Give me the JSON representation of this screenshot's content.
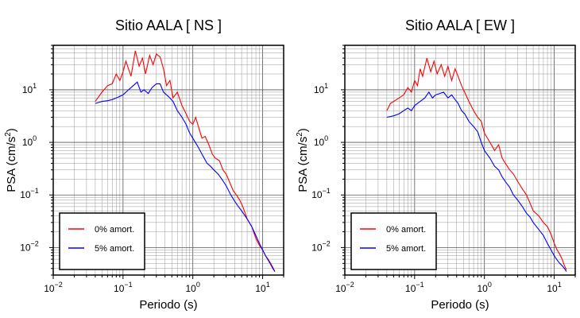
{
  "chart_data": [
    {
      "type": "line",
      "title": "Sitio AALA [ NS ]",
      "xlabel": "Periodo (s)",
      "ylabel": "PSA (cm/s²)",
      "xscale": "log",
      "yscale": "log",
      "xlim": [
        0.01,
        20
      ],
      "ylim": [
        0.003,
        70
      ],
      "grid": true,
      "legend_position": "bottom-left",
      "x_ticks": [
        {
          "base": "10",
          "exp": "−2"
        },
        {
          "base": "10",
          "exp": "−1"
        },
        {
          "base": "10",
          "exp": "0"
        },
        {
          "base": "10",
          "exp": "1"
        }
      ],
      "y_ticks": [
        {
          "base": "10",
          "exp": "−2"
        },
        {
          "base": "10",
          "exp": "−1"
        },
        {
          "base": "10",
          "exp": "0"
        },
        {
          "base": "10",
          "exp": "1"
        }
      ],
      "series": [
        {
          "name": "0% amort.",
          "color": "#ff0000",
          "x": [
            0.04,
            0.05,
            0.06,
            0.07,
            0.08,
            0.09,
            0.1,
            0.11,
            0.13,
            0.15,
            0.17,
            0.19,
            0.21,
            0.24,
            0.27,
            0.3,
            0.34,
            0.38,
            0.42,
            0.47,
            0.52,
            0.6,
            0.7,
            0.8,
            0.9,
            1.0,
            1.1,
            1.2,
            1.35,
            1.5,
            1.7,
            1.9,
            2.1,
            2.4,
            2.7,
            3.0,
            3.4,
            3.8,
            4.2,
            4.7,
            5.2,
            6.0,
            7.0,
            8.0,
            9.0,
            10.0,
            11.0,
            12.0,
            13.0,
            14.0,
            15.0
          ],
          "y": [
            6,
            9,
            12,
            13,
            20,
            15,
            22,
            35,
            18,
            55,
            28,
            40,
            20,
            45,
            30,
            48,
            42,
            25,
            12,
            15,
            7,
            9,
            5,
            3.5,
            2.5,
            2.2,
            3,
            2,
            1.2,
            1.3,
            0.9,
            0.6,
            0.5,
            0.45,
            0.3,
            0.25,
            0.17,
            0.12,
            0.1,
            0.08,
            0.06,
            0.035,
            0.025,
            0.015,
            0.011,
            0.009,
            0.007,
            0.006,
            0.005,
            0.0042,
            0.0035
          ]
        },
        {
          "name": "5% amort.",
          "color": "#0000ff",
          "x": [
            0.04,
            0.05,
            0.06,
            0.07,
            0.08,
            0.09,
            0.1,
            0.12,
            0.14,
            0.16,
            0.18,
            0.2,
            0.23,
            0.26,
            0.3,
            0.34,
            0.38,
            0.42,
            0.47,
            0.52,
            0.6,
            0.7,
            0.8,
            0.9,
            1.0,
            1.2,
            1.4,
            1.6,
            1.8,
            2.0,
            2.3,
            2.6,
            3.0,
            3.5,
            4.0,
            4.5,
            5.0,
            6.0,
            7.0,
            8.0,
            9.0,
            10.0,
            11.0,
            12.0,
            13.0,
            14.0,
            15.0
          ],
          "y": [
            5.5,
            6,
            6.2,
            6.5,
            7,
            7.5,
            8,
            10,
            12,
            14,
            9,
            10,
            8.5,
            11,
            13,
            13,
            9,
            8,
            7,
            6,
            4,
            3,
            2.2,
            1.5,
            1.2,
            0.8,
            0.55,
            0.4,
            0.35,
            0.3,
            0.25,
            0.2,
            0.15,
            0.1,
            0.075,
            0.06,
            0.05,
            0.035,
            0.025,
            0.017,
            0.012,
            0.009,
            0.007,
            0.0058,
            0.0048,
            0.004,
            0.0035
          ]
        }
      ]
    },
    {
      "type": "line",
      "title": "Sitio AALA [ EW ]",
      "xlabel": "Periodo (s)",
      "ylabel": "PSA (cm/s²)",
      "xscale": "log",
      "yscale": "log",
      "xlim": [
        0.01,
        20
      ],
      "ylim": [
        0.003,
        70
      ],
      "grid": true,
      "legend_position": "bottom-left",
      "x_ticks": [
        {
          "base": "10",
          "exp": "−2"
        },
        {
          "base": "10",
          "exp": "−1"
        },
        {
          "base": "10",
          "exp": "0"
        },
        {
          "base": "10",
          "exp": "1"
        }
      ],
      "y_ticks": [
        {
          "base": "10",
          "exp": "−2"
        },
        {
          "base": "10",
          "exp": "−1"
        },
        {
          "base": "10",
          "exp": "0"
        },
        {
          "base": "10",
          "exp": "1"
        }
      ],
      "series": [
        {
          "name": "0% amort.",
          "color": "#ff0000",
          "x": [
            0.04,
            0.045,
            0.05,
            0.06,
            0.07,
            0.08,
            0.09,
            0.1,
            0.11,
            0.12,
            0.13,
            0.15,
            0.17,
            0.19,
            0.21,
            0.24,
            0.27,
            0.3,
            0.34,
            0.38,
            0.42,
            0.47,
            0.52,
            0.6,
            0.7,
            0.8,
            0.9,
            1.0,
            1.2,
            1.4,
            1.6,
            1.8,
            2.0,
            2.3,
            2.6,
            3.0,
            3.5,
            4.0,
            4.5,
            5.0,
            6.0,
            7.0,
            8.0,
            9.0,
            10.0,
            11.0,
            12.0,
            13.0,
            14.0,
            15.0
          ],
          "y": [
            4,
            5.5,
            6,
            7,
            8,
            11,
            9,
            15,
            12,
            25,
            18,
            40,
            22,
            35,
            20,
            30,
            18,
            28,
            15,
            25,
            18,
            12,
            9,
            6,
            4,
            3,
            2.5,
            1.5,
            1.0,
            0.7,
            0.9,
            0.5,
            0.4,
            0.3,
            0.25,
            0.18,
            0.13,
            0.1,
            0.07,
            0.05,
            0.04,
            0.03,
            0.025,
            0.018,
            0.012,
            0.009,
            0.0075,
            0.006,
            0.0045,
            0.0038
          ]
        },
        {
          "name": "5% amort.",
          "color": "#0000ff",
          "x": [
            0.04,
            0.05,
            0.06,
            0.07,
            0.08,
            0.09,
            0.1,
            0.12,
            0.14,
            0.16,
            0.18,
            0.2,
            0.23,
            0.26,
            0.3,
            0.34,
            0.38,
            0.42,
            0.47,
            0.52,
            0.6,
            0.7,
            0.8,
            0.9,
            1.0,
            1.2,
            1.4,
            1.6,
            1.8,
            2.0,
            2.3,
            2.6,
            3.0,
            3.5,
            4.0,
            4.5,
            5.0,
            6.0,
            7.0,
            8.0,
            9.0,
            10.0,
            11.0,
            12.0,
            13.0,
            14.0,
            15.0
          ],
          "y": [
            3,
            3.2,
            3.5,
            4,
            4.5,
            4,
            5,
            6,
            7,
            9,
            7,
            8,
            8.5,
            9,
            7,
            8,
            6.5,
            5.5,
            4,
            3.5,
            2.5,
            2.0,
            1.6,
            1.0,
            0.7,
            0.5,
            0.35,
            0.3,
            0.22,
            0.18,
            0.14,
            0.1,
            0.08,
            0.06,
            0.045,
            0.038,
            0.03,
            0.022,
            0.017,
            0.012,
            0.009,
            0.007,
            0.0058,
            0.005,
            0.0045,
            0.004,
            0.0035
          ]
        }
      ]
    }
  ]
}
